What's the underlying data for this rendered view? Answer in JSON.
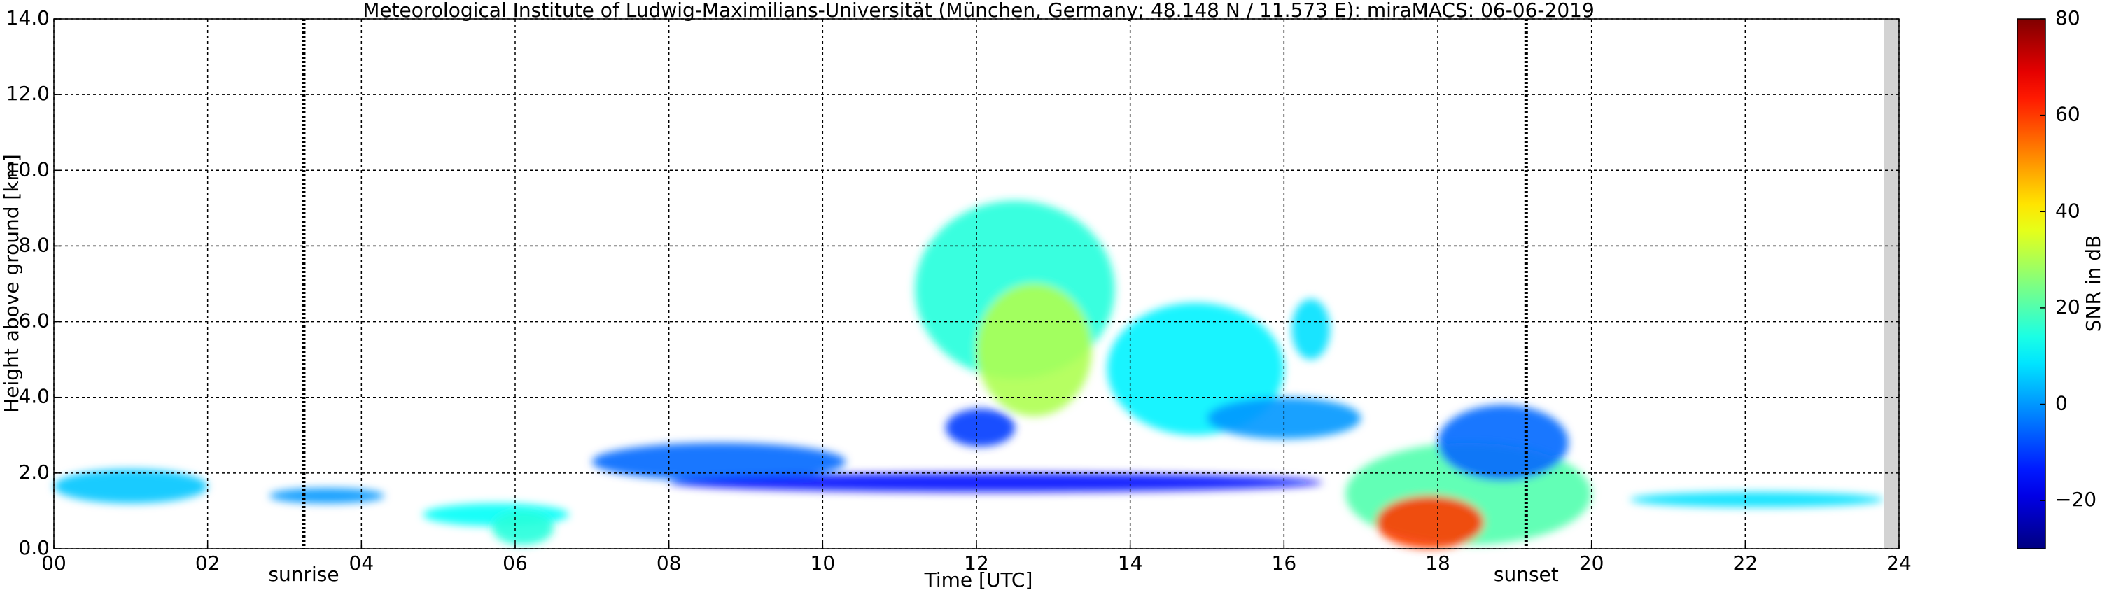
{
  "chart_data": {
    "type": "time-height",
    "title": "Meteorological Institute of Ludwig-Maximilians-Universität (München, Germany; 48.148 N / 11.573 E):    miraMACS: 06-06-2019",
    "xlabel": "Time [UTC]",
    "ylabel": "Height above ground [km]",
    "xlim": [
      0,
      24
    ],
    "xticks": [
      {
        "value": 0,
        "label": "00"
      },
      {
        "value": 2,
        "label": "02"
      },
      {
        "value": 4,
        "label": "04"
      },
      {
        "value": 6,
        "label": "06"
      },
      {
        "value": 8,
        "label": "08"
      },
      {
        "value": 10,
        "label": "10"
      },
      {
        "value": 12,
        "label": "12"
      },
      {
        "value": 14,
        "label": "14"
      },
      {
        "value": 16,
        "label": "16"
      },
      {
        "value": 18,
        "label": "18"
      },
      {
        "value": 20,
        "label": "20"
      },
      {
        "value": 22,
        "label": "22"
      },
      {
        "value": 24,
        "label": "24"
      }
    ],
    "ylim": [
      0,
      14
    ],
    "yticks": [
      {
        "value": 0,
        "label": "0.0"
      },
      {
        "value": 2,
        "label": "2.0"
      },
      {
        "value": 4,
        "label": "4.0"
      },
      {
        "value": 6,
        "label": "6.0"
      },
      {
        "value": 8,
        "label": "8.0"
      },
      {
        "value": 10,
        "label": "10.0"
      },
      {
        "value": 12,
        "label": "12.0"
      },
      {
        "value": 14,
        "label": "14.0"
      }
    ],
    "grid": true,
    "colormap": "jet",
    "no_data": [
      23.8,
      24
    ],
    "annotations": [
      {
        "label": "sunrise",
        "x": 3.25
      },
      {
        "label": "sunset",
        "x": 19.15
      }
    ],
    "colorbar": {
      "label": "SNR in dB",
      "lim": [
        -30,
        80
      ],
      "ticks": [
        {
          "value": -20,
          "label": "−20"
        },
        0,
        20,
        40,
        60,
        80
      ]
    },
    "echoes": [
      {
        "x": [
          0.0,
          2.0
        ],
        "y": [
          1.2,
          2.1
        ],
        "snr": 5
      },
      {
        "x": [
          2.8,
          4.3
        ],
        "y": [
          1.2,
          1.6
        ],
        "snr": 0
      },
      {
        "x": [
          4.8,
          6.7
        ],
        "y": [
          0.6,
          1.2
        ],
        "snr": 12
      },
      {
        "x": [
          5.7,
          6.5
        ],
        "y": [
          0.1,
          1.0
        ],
        "snr": 15
      },
      {
        "x": [
          7.0,
          10.3
        ],
        "y": [
          1.8,
          2.8
        ],
        "snr": -5
      },
      {
        "x": [
          8.0,
          16.5
        ],
        "y": [
          1.5,
          2.0
        ],
        "snr": -15
      },
      {
        "x": [
          11.2,
          13.8
        ],
        "y": [
          4.5,
          9.2
        ],
        "snr": 15
      },
      {
        "x": [
          12.0,
          13.5
        ],
        "y": [
          3.5,
          7.0
        ],
        "snr": 30
      },
      {
        "x": [
          13.7,
          16.0
        ],
        "y": [
          3.0,
          6.5
        ],
        "snr": 10
      },
      {
        "x": [
          16.1,
          16.6
        ],
        "y": [
          5.0,
          6.6
        ],
        "snr": 8
      },
      {
        "x": [
          15.0,
          17.0
        ],
        "y": [
          2.9,
          4.0
        ],
        "snr": 0
      },
      {
        "x": [
          11.6,
          12.5
        ],
        "y": [
          2.7,
          3.7
        ],
        "snr": -10
      },
      {
        "x": [
          16.8,
          20.0
        ],
        "y": [
          0.1,
          2.8
        ],
        "snr": 20
      },
      {
        "x": [
          17.2,
          18.6
        ],
        "y": [
          0.0,
          1.4
        ],
        "snr": 60
      },
      {
        "x": [
          18.0,
          19.7
        ],
        "y": [
          1.8,
          3.8
        ],
        "snr": -5
      },
      {
        "x": [
          20.5,
          23.8
        ],
        "y": [
          1.1,
          1.5
        ],
        "snr": 8
      }
    ]
  }
}
